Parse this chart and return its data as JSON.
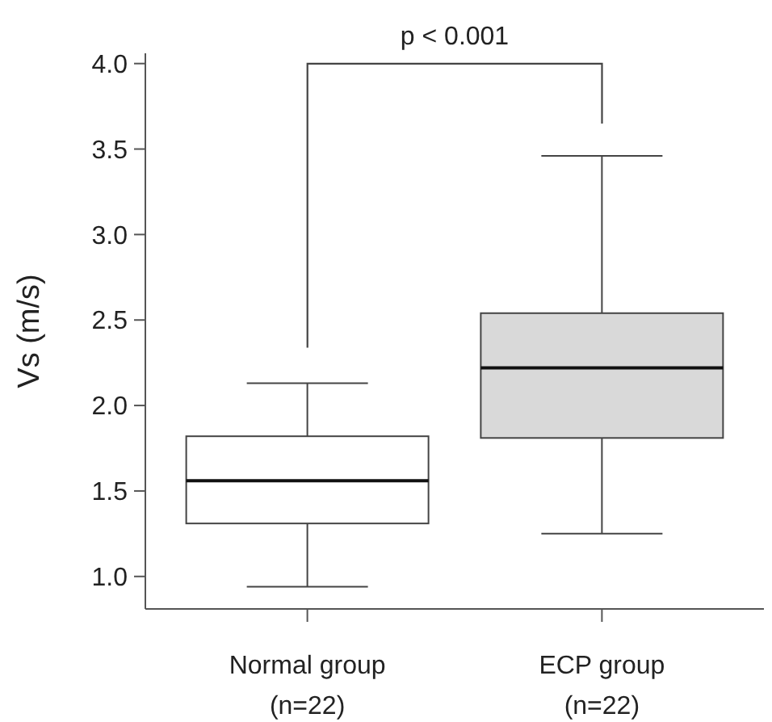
{
  "chart_data": {
    "type": "box",
    "ylabel": "Vs (m/s)",
    "categories": [
      "Normal group\n(n=22)",
      "ECP group\n(n=22)"
    ],
    "boxes": [
      {
        "low": 0.94,
        "q1": 1.31,
        "median": 1.56,
        "q3": 1.82,
        "high": 2.13
      },
      {
        "low": 1.25,
        "q1": 1.81,
        "median": 2.22,
        "q3": 2.54,
        "high": 3.46
      }
    ],
    "colors": [
      "#ffffff",
      "#d9d9d9"
    ],
    "ylim": [
      0.81,
      4.06
    ],
    "yticks": [
      {
        "value": 1,
        "label": "1.0"
      },
      {
        "value": 1.5,
        "label": "1.5"
      },
      {
        "value": 2,
        "label": "2.0"
      },
      {
        "value": 2.5,
        "label": "2.5"
      },
      {
        "value": 3,
        "label": "3.0"
      },
      {
        "value": 3.5,
        "label": "3.5"
      },
      {
        "value": 4,
        "label": "4.0"
      }
    ],
    "annotations": [
      "p < 0.001"
    ],
    "grid": false,
    "legend": false
  }
}
